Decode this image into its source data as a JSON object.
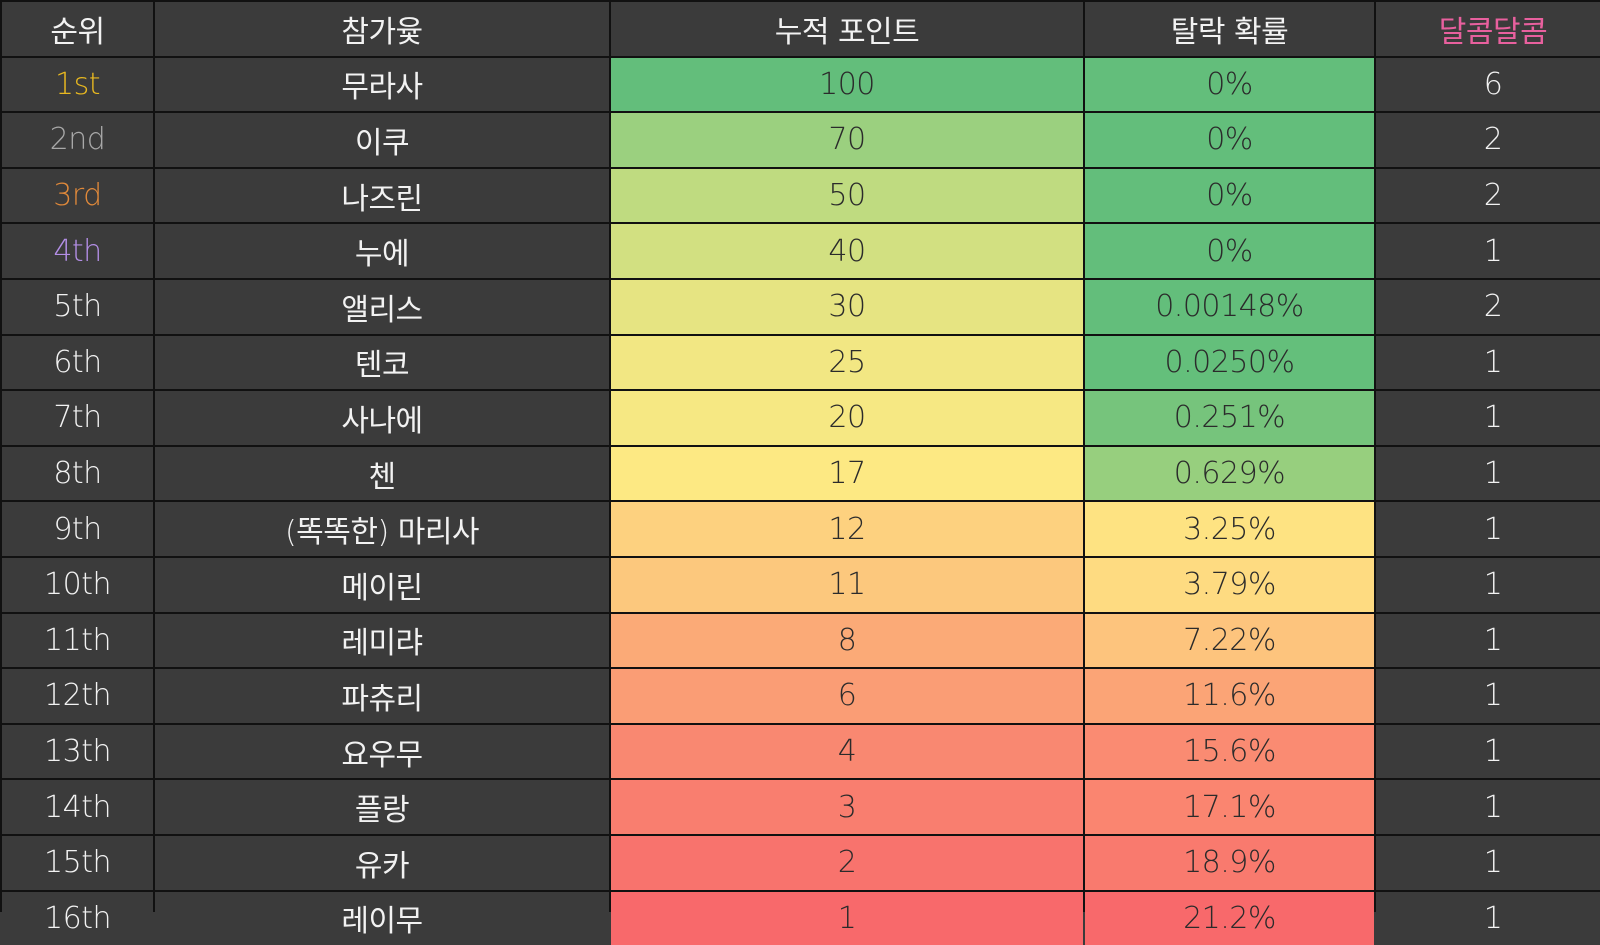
{
  "table": {
    "headers": [
      "순위",
      "참가윷",
      "누적 포인트",
      "탈락 확률",
      "달콤달콤"
    ],
    "header_colors": [
      "#f2f2f2",
      "#f2f2f2",
      "#f2f2f2",
      "#f2f2f2",
      "#e8609e"
    ],
    "rows": [
      [
        "1st",
        "무라사",
        "100",
        "0%",
        "6"
      ],
      [
        "2nd",
        "이쿠",
        "70",
        "0%",
        "2"
      ],
      [
        "3rd",
        "나즈린",
        "50",
        "0%",
        "2"
      ],
      [
        "4th",
        "누에",
        "40",
        "0%",
        "1"
      ],
      [
        "5th",
        "앨리스",
        "30",
        "0.00148%",
        "2"
      ],
      [
        "6th",
        "텐코",
        "25",
        "0.0250%",
        "1"
      ],
      [
        "7th",
        "사나에",
        "20",
        "0.251%",
        "1"
      ],
      [
        "8th",
        "첸",
        "17",
        "0.629%",
        "1"
      ],
      [
        "9th",
        "(똑똑한) 마리사",
        "12",
        "3.25%",
        "1"
      ],
      [
        "10th",
        "메이린",
        "11",
        "3.79%",
        "1"
      ],
      [
        "11th",
        "레미랴",
        "8",
        "7.22%",
        "1"
      ],
      [
        "12th",
        "파츄리",
        "6",
        "11.6%",
        "1"
      ],
      [
        "13th",
        "요우무",
        "4",
        "15.6%",
        "1"
      ],
      [
        "14th",
        "플랑",
        "3",
        "17.1%",
        "1"
      ],
      [
        "15th",
        "유카",
        "2",
        "18.9%",
        "1"
      ],
      [
        "16th",
        "레이무",
        "1",
        "21.2%",
        "1"
      ]
    ],
    "rank_colors": [
      "#e8b820",
      "#a8a8a8",
      "#e0893a",
      "#b38ee6",
      "#f2f2f2",
      "#f2f2f2",
      "#f2f2f2",
      "#f2f2f2",
      "#f2f2f2",
      "#f2f2f2",
      "#f2f2f2",
      "#f2f2f2",
      "#f2f2f2",
      "#f2f2f2",
      "#f2f2f2",
      "#f2f2f2"
    ],
    "points_colors": [
      "#63be7b",
      "#9bd07f",
      "#bfdb80",
      "#d2e081",
      "#e6e482",
      "#f2e783",
      "#f6e883",
      "#fde983",
      "#fdd17f",
      "#fcc87d",
      "#fbaa77",
      "#fa9d75",
      "#f98871",
      "#f97e6f",
      "#f8736d",
      "#f8696b"
    ],
    "prob_colors": [
      "#63be7b",
      "#63be7b",
      "#63be7b",
      "#63be7b",
      "#63be7b",
      "#64bf7b",
      "#76c47c",
      "#97cf7e",
      "#fee382",
      "#fedb81",
      "#fdc47d",
      "#fba476",
      "#fa8b72",
      "#fa8570",
      "#f97a6e",
      "#f8696b"
    ]
  }
}
